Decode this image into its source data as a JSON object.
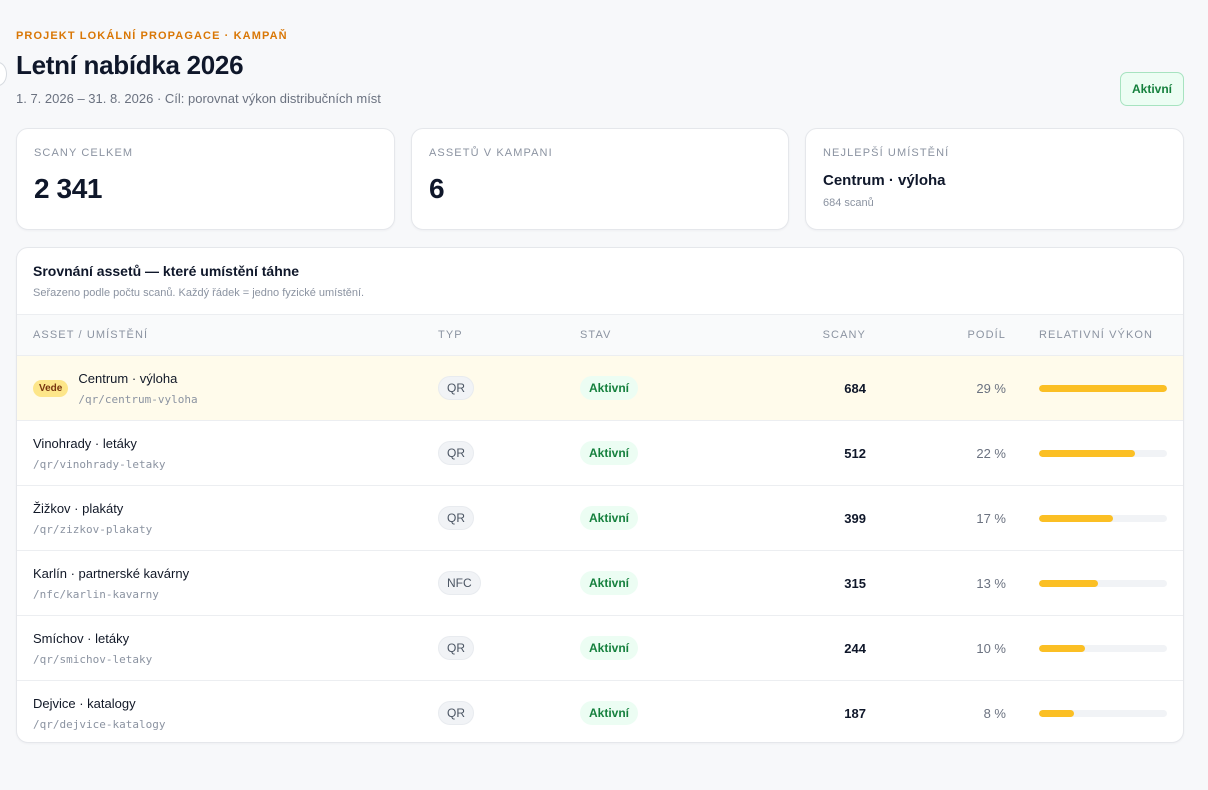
{
  "header": {
    "eyebrow": "PROJEKT LOKÁLNÍ PROPAGACE · KAMPAŇ",
    "title": "Letní nabídka 2026",
    "subtitle": "1. 7. 2026 – 31. 8. 2026 · Cíl: porovnat výkon distribučních míst",
    "status": "Aktivní"
  },
  "stats": {
    "scans": {
      "label": "SCANY CELKEM",
      "value": "2 341"
    },
    "assets": {
      "label": "ASSETŮ V KAMPANI",
      "value": "6"
    },
    "best": {
      "label": "NEJLEPŠÍ UMÍSTĚNÍ",
      "value": "Centrum · výloha",
      "detail": "684 scanů"
    }
  },
  "table": {
    "title": "Srovnání assetů — které umístění táhne",
    "subtitle": "Seřazeno podle počtu scanů. Každý řádek = jedno fyzické umístění.",
    "columns": {
      "asset": "ASSET / UMÍSTĚNÍ",
      "type": "TYP",
      "state": "STAV",
      "scans": "SCANY",
      "share": "PODÍL",
      "relative": "RELATIVNÍ VÝKON"
    },
    "lead_badge": "Vede",
    "rows": [
      {
        "name": "Centrum · výloha",
        "path": "/qr/centrum-vyloha",
        "type": "QR",
        "state": "Aktivní",
        "scans": "684",
        "share": "29 %",
        "relative": 1.0,
        "lead": true
      },
      {
        "name": "Vinohrady · letáky",
        "path": "/qr/vinohrady-letaky",
        "type": "QR",
        "state": "Aktivní",
        "scans": "512",
        "share": "22 %",
        "relative": 0.75,
        "lead": false
      },
      {
        "name": "Žižkov · plakáty",
        "path": "/qr/zizkov-plakaty",
        "type": "QR",
        "state": "Aktivní",
        "scans": "399",
        "share": "17 %",
        "relative": 0.58,
        "lead": false
      },
      {
        "name": "Karlín · partnerské kavárny",
        "path": "/nfc/karlin-kavarny",
        "type": "NFC",
        "state": "Aktivní",
        "scans": "315",
        "share": "13 %",
        "relative": 0.46,
        "lead": false
      },
      {
        "name": "Smíchov · letáky",
        "path": "/qr/smichov-letaky",
        "type": "QR",
        "state": "Aktivní",
        "scans": "244",
        "share": "10 %",
        "relative": 0.36,
        "lead": false
      },
      {
        "name": "Dejvice · katalogy",
        "path": "/qr/dejvice-katalogy",
        "type": "QR",
        "state": "Aktivní",
        "scans": "187",
        "share": "8 %",
        "relative": 0.27,
        "lead": false
      }
    ]
  }
}
